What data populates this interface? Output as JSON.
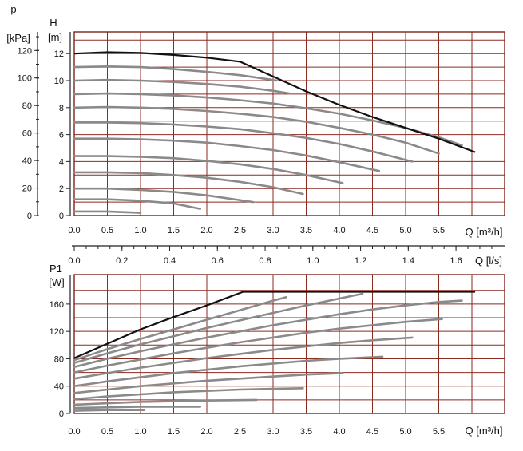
{
  "chart_data": [
    {
      "type": "line",
      "title": "",
      "xlabel": "Q [m³/h]",
      "ylabel": "H [m]",
      "ylabel_secondary": "p [kPa]",
      "xlim": [
        0,
        6.5
      ],
      "ylim": [
        0,
        13.5
      ],
      "x_ticks": [
        "0.0",
        "0.5",
        "1.0",
        "1.5",
        "2.0",
        "2.5",
        "3.0",
        "3.5",
        "4.0",
        "4.5",
        "5.0",
        "5.5"
      ],
      "y_ticks": [
        "0",
        "2",
        "4",
        "6",
        "8",
        "10",
        "12"
      ],
      "y_secondary_ticks": [
        "0",
        "20",
        "40",
        "60",
        "80",
        "100",
        "120"
      ],
      "grid": true,
      "secondary_top_axis": {
        "label": "Q [l/s]",
        "ticks": [
          "0.0",
          "0.2",
          "0.4",
          "0.6",
          "0.8",
          "1.0",
          "1.2",
          "1.4",
          "1.6"
        ]
      },
      "envelope": {
        "x": [
          0,
          0.5,
          1.0,
          1.5,
          2.0,
          2.5,
          3.0,
          3.5,
          4.0,
          4.5,
          5.0,
          5.5,
          6.05
        ],
        "y": [
          12.0,
          12.1,
          12.05,
          11.9,
          11.7,
          11.4,
          10.3,
          9.2,
          8.2,
          7.3,
          6.5,
          5.7,
          4.7
        ]
      },
      "series": [
        {
          "x": [
            0,
            0.5,
            1.0
          ],
          "y": [
            0.3,
            0.3,
            0.2
          ]
        },
        {
          "x": [
            0,
            0.5,
            1.0,
            1.5,
            1.9
          ],
          "y": [
            1.2,
            1.2,
            1.1,
            0.9,
            0.5
          ]
        },
        {
          "x": [
            0,
            0.5,
            1.0,
            1.5,
            2.0,
            2.7
          ],
          "y": [
            2.0,
            2.0,
            1.9,
            1.75,
            1.5,
            1.0
          ]
        },
        {
          "x": [
            0,
            0.5,
            1.0,
            1.5,
            2.0,
            2.5,
            3.0,
            3.45
          ],
          "y": [
            3.2,
            3.2,
            3.15,
            3.0,
            2.8,
            2.5,
            2.1,
            1.6
          ]
        },
        {
          "x": [
            0,
            0.5,
            1.0,
            1.5,
            2.0,
            2.5,
            3.0,
            3.5,
            4.05
          ],
          "y": [
            4.4,
            4.4,
            4.35,
            4.25,
            4.05,
            3.8,
            3.45,
            3.0,
            2.4
          ]
        },
        {
          "x": [
            0,
            0.5,
            1.0,
            1.5,
            2.0,
            2.5,
            3.0,
            3.5,
            4.0,
            4.6
          ],
          "y": [
            5.7,
            5.7,
            5.65,
            5.55,
            5.4,
            5.15,
            4.85,
            4.45,
            3.95,
            3.3
          ]
        },
        {
          "x": [
            0,
            0.5,
            1.0,
            1.5,
            2.0,
            2.5,
            3.0,
            3.5,
            4.0,
            4.5,
            5.1
          ],
          "y": [
            6.9,
            6.9,
            6.85,
            6.75,
            6.6,
            6.4,
            6.1,
            5.75,
            5.3,
            4.75,
            4.0
          ]
        },
        {
          "x": [
            0,
            0.5,
            1.0,
            1.5,
            2.0,
            2.5,
            3.0,
            3.5,
            4.0,
            4.5,
            5.0,
            5.5
          ],
          "y": [
            8.0,
            8.05,
            8.0,
            7.9,
            7.75,
            7.55,
            7.3,
            6.95,
            6.5,
            6.0,
            5.4,
            4.6
          ]
        },
        {
          "x": [
            0,
            0.5,
            1.0,
            1.5,
            2.0,
            2.5,
            3.0,
            3.5,
            4.0,
            4.5,
            5.0,
            5.5,
            5.85
          ],
          "y": [
            9.0,
            9.05,
            9.0,
            8.9,
            8.75,
            8.55,
            8.3,
            7.95,
            7.55,
            7.05,
            6.5,
            5.8,
            5.2
          ]
        },
        {
          "x": [
            0,
            0.5,
            1.0,
            1.5,
            2.0,
            2.5,
            3.0,
            3.25
          ],
          "y": [
            10.0,
            10.05,
            10.0,
            9.9,
            9.75,
            9.55,
            9.25,
            9.05
          ]
        },
        {
          "x": [
            0,
            0.5,
            1.0,
            1.5,
            2.0,
            2.5,
            3.0,
            3.05
          ],
          "y": [
            11.0,
            11.05,
            11.0,
            10.85,
            10.65,
            10.4,
            10.05,
            10.0
          ]
        }
      ]
    },
    {
      "type": "line",
      "title": "",
      "xlabel": "Q [m³/h]",
      "ylabel": "P1 [W]",
      "xlim": [
        0,
        6.5
      ],
      "ylim": [
        0,
        190
      ],
      "x_ticks": [
        "0.0",
        "0.5",
        "1.0",
        "1.5",
        "2.0",
        "2.5",
        "3.0",
        "3.5",
        "4.0",
        "4.5",
        "5.0",
        "5.5"
      ],
      "y_ticks": [
        "0",
        "40",
        "80",
        "120",
        "160"
      ],
      "grid": true,
      "envelope": {
        "x": [
          0,
          0.5,
          1.0,
          1.5,
          2.0,
          2.55,
          3.0,
          3.5,
          4.0,
          4.5,
          5.0,
          5.5,
          6.05
        ],
        "y": [
          81,
          102,
          123,
          141,
          158,
          178,
          178,
          178,
          178,
          178,
          178,
          178,
          178
        ]
      },
      "series": [
        {
          "x": [
            0,
            0.5,
            1.05
          ],
          "y": [
            4,
            5,
            5
          ]
        },
        {
          "x": [
            0,
            0.5,
            1.0,
            1.5,
            1.9
          ],
          "y": [
            8,
            9,
            10,
            10,
            10
          ]
        },
        {
          "x": [
            0,
            0.5,
            1.0,
            1.5,
            2.0,
            2.75
          ],
          "y": [
            13,
            15,
            17,
            18,
            19,
            20
          ]
        },
        {
          "x": [
            0,
            0.5,
            1.0,
            1.5,
            2.0,
            2.5,
            3.0,
            3.45
          ],
          "y": [
            21,
            25,
            28,
            31,
            33,
            35,
            36,
            37
          ]
        },
        {
          "x": [
            0,
            0.5,
            1.0,
            1.5,
            2.0,
            2.5,
            3.0,
            3.5,
            4.05
          ],
          "y": [
            30,
            35,
            40,
            44,
            48,
            51,
            54,
            57,
            59
          ]
        },
        {
          "x": [
            0,
            0.5,
            1.0,
            1.5,
            2.0,
            2.5,
            3.0,
            3.5,
            4.0,
            4.65
          ],
          "y": [
            40,
            47,
            53,
            59,
            64,
            69,
            73,
            77,
            80,
            83
          ]
        },
        {
          "x": [
            0,
            0.5,
            1.0,
            1.5,
            2.0,
            2.5,
            3.0,
            3.5,
            4.0,
            4.5,
            5.1
          ],
          "y": [
            51,
            59,
            67,
            74,
            81,
            87,
            93,
            98,
            103,
            107,
            111
          ]
        },
        {
          "x": [
            0,
            0.5,
            1.0,
            1.5,
            2.0,
            2.5,
            3.0,
            3.5,
            4.0,
            4.5,
            5.0,
            5.55
          ],
          "y": [
            60,
            70,
            79,
            88,
            96,
            104,
            111,
            118,
            124,
            129,
            134,
            138
          ]
        },
        {
          "x": [
            0,
            0.5,
            1.0,
            1.5,
            2.0,
            2.5,
            3.0,
            3.5,
            4.0,
            4.5,
            5.0,
            5.5,
            5.85
          ],
          "y": [
            68,
            80,
            91,
            101,
            111,
            120,
            129,
            137,
            145,
            152,
            158,
            163,
            165
          ]
        },
        {
          "x": [
            0,
            0.5,
            1.0,
            1.5,
            2.0,
            2.5,
            3.0,
            3.5,
            4.0,
            4.35
          ],
          "y": [
            74,
            88,
            101,
            113,
            125,
            136,
            147,
            158,
            168,
            175
          ]
        },
        {
          "x": [
            0,
            0.5,
            1.0,
            1.5,
            2.0,
            2.5,
            3.0,
            3.2
          ],
          "y": [
            78,
            94,
            109,
            123,
            137,
            151,
            165,
            170
          ]
        }
      ]
    }
  ]
}
